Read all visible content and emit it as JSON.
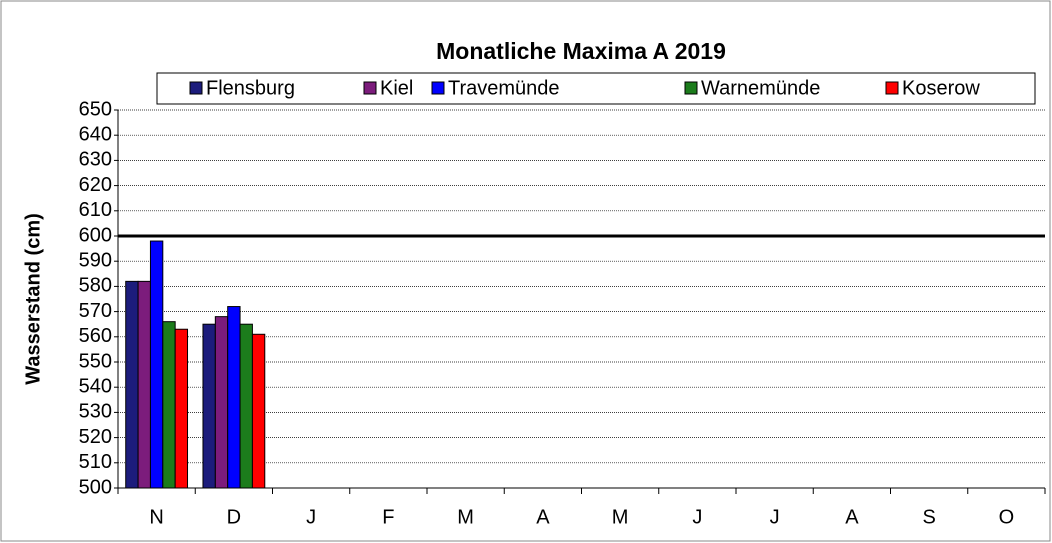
{
  "chart_data": {
    "type": "bar",
    "title": "Monatliche Maxima A 2019",
    "y_label": "Wasserstand (cm)",
    "categories": [
      "N",
      "D",
      "J",
      "F",
      "M",
      "A",
      "M",
      "J",
      "J",
      "A",
      "S",
      "O"
    ],
    "series": [
      {
        "name": "Flensburg",
        "color": "#1c1c7c",
        "values": [
          582,
          565,
          null,
          null,
          null,
          null,
          null,
          null,
          null,
          null,
          null,
          null
        ]
      },
      {
        "name": "Kiel",
        "color": "#7c1c7c",
        "values": [
          582,
          568,
          null,
          null,
          null,
          null,
          null,
          null,
          null,
          null,
          null,
          null
        ]
      },
      {
        "name": "Travemünde",
        "color": "#0000ff",
        "values": [
          598,
          572,
          null,
          null,
          null,
          null,
          null,
          null,
          null,
          null,
          null,
          null
        ]
      },
      {
        "name": "Warnemünde",
        "color": "#1c7c1c",
        "values": [
          566,
          565,
          null,
          null,
          null,
          null,
          null,
          null,
          null,
          null,
          null,
          null
        ]
      },
      {
        "name": "Koserow",
        "color": "#ff0000",
        "values": [
          563,
          561,
          null,
          null,
          null,
          null,
          null,
          null,
          null,
          null,
          null,
          null
        ]
      }
    ],
    "reference_line": 600,
    "ylim": [
      500,
      650
    ],
    "yticks": [
      500,
      510,
      520,
      530,
      540,
      550,
      560,
      570,
      580,
      590,
      600,
      610,
      620,
      630,
      640,
      650
    ],
    "grid": true,
    "legend": "top"
  }
}
